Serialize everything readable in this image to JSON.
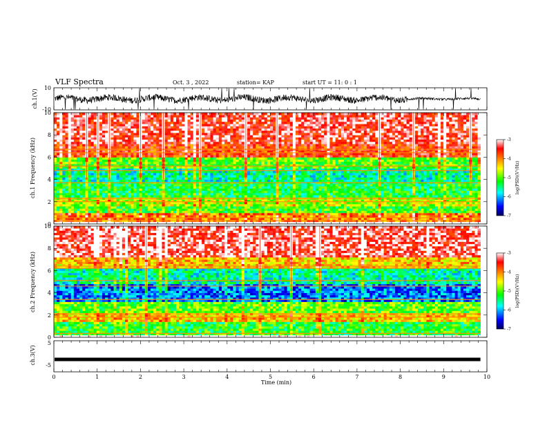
{
  "header": {
    "title": "VLF Spectra",
    "date": "Oct. 3  , 2022",
    "station": "station= KAP",
    "start": "start  UT =   11: 0   : 1"
  },
  "chart_data": [
    {
      "type": "line",
      "name": "ch1-waveform",
      "ylabel": "ch.1(V)",
      "ylim": [
        -10,
        10
      ],
      "yticks": [
        "10",
        "-10"
      ],
      "xlim": [
        0,
        10
      ],
      "x_end": 9.85,
      "note_values": "amplitude envelope approx. -5 to 5 V"
    },
    {
      "type": "heatmap",
      "name": "ch1-spectrogram",
      "ylabel": "ch.1 Frequency (kHz)",
      "ylim": [
        0,
        10
      ],
      "yticks": [
        "0",
        "2",
        "4",
        "6",
        "8",
        "10"
      ],
      "xlim": [
        0,
        10
      ],
      "x_end": 9.85,
      "zlim": [
        -7,
        -3
      ],
      "colorbar_label": "log(PSD)(V²/Hz)",
      "colorbar_ticks": [
        "-3",
        "-4",
        "-5",
        "-6",
        "-7"
      ],
      "band_levels": [
        {
          "f_low": 0,
          "f_high": 0.3,
          "level": -2.6
        },
        {
          "f_low": 0.3,
          "f_high": 1.0,
          "level": -4.0
        },
        {
          "f_low": 1.0,
          "f_high": 1.7,
          "level": -5.1
        },
        {
          "f_low": 1.7,
          "f_high": 2.5,
          "level": -4.7
        },
        {
          "f_low": 2.5,
          "f_high": 3.8,
          "level": -5.3
        },
        {
          "f_low": 3.8,
          "f_high": 5.0,
          "level": -5.6
        },
        {
          "f_low": 5.0,
          "f_high": 6.0,
          "level": -5.0
        },
        {
          "f_low": 6.0,
          "f_high": 7.2,
          "level": -3.7
        },
        {
          "f_low": 7.2,
          "f_high": 10.0,
          "level": -3.4
        }
      ],
      "lines_kHz": [
        0.3,
        0.55,
        2.0,
        2.3,
        3.7,
        4.8,
        5.2,
        6.4,
        6.7
      ]
    },
    {
      "type": "heatmap",
      "name": "ch2-spectrogram",
      "ylabel": "ch.2 Frequency (kHz)",
      "ylim": [
        0,
        10
      ],
      "yticks": [
        "0",
        "2",
        "4",
        "6",
        "8",
        "10"
      ],
      "xlim": [
        0,
        10
      ],
      "x_end": 9.85,
      "zlim": [
        -7,
        -3
      ],
      "colorbar_label": "log(PSD)(V²/Hz)",
      "colorbar_ticks": [
        "-3",
        "-4",
        "-5",
        "-6",
        "-7"
      ],
      "band_levels": [
        {
          "f_low": 0,
          "f_high": 0.3,
          "level": -2.6
        },
        {
          "f_low": 0.3,
          "f_high": 1.5,
          "level": -5.2
        },
        {
          "f_low": 1.5,
          "f_high": 2.3,
          "level": -4.3
        },
        {
          "f_low": 2.3,
          "f_high": 3.3,
          "level": -5.0
        },
        {
          "f_low": 3.3,
          "f_high": 4.8,
          "level": -6.2
        },
        {
          "f_low": 4.8,
          "f_high": 6.2,
          "level": -5.6
        },
        {
          "f_low": 6.2,
          "f_high": 7.2,
          "level": -4.3
        },
        {
          "f_low": 7.2,
          "f_high": 10.0,
          "level": -3.3
        }
      ],
      "lines_kHz": [
        0.35,
        1.8,
        2.1,
        3.4,
        4.6,
        5.1,
        6.2,
        6.4
      ]
    },
    {
      "type": "line",
      "name": "ch3-waveform",
      "ylabel": "ch.3(V)",
      "ylim": [
        -5,
        5
      ],
      "yticks": [
        "5",
        "-5"
      ],
      "xlim": [
        0,
        10
      ],
      "x_end": 9.85,
      "value": -1
    }
  ],
  "xaxis": {
    "label": "Time (min)",
    "ticks": [
      "0",
      "1",
      "2",
      "3",
      "4",
      "5",
      "6",
      "7",
      "8",
      "9",
      "10"
    ]
  },
  "colors": {
    "trace": "#000000",
    "line": "#ff8800",
    "colormap": [
      "#00005a",
      "#0000ff",
      "#00ffff",
      "#00ff00",
      "#ffff00",
      "#ff7f00",
      "#ff0000",
      "#ffffff"
    ]
  }
}
